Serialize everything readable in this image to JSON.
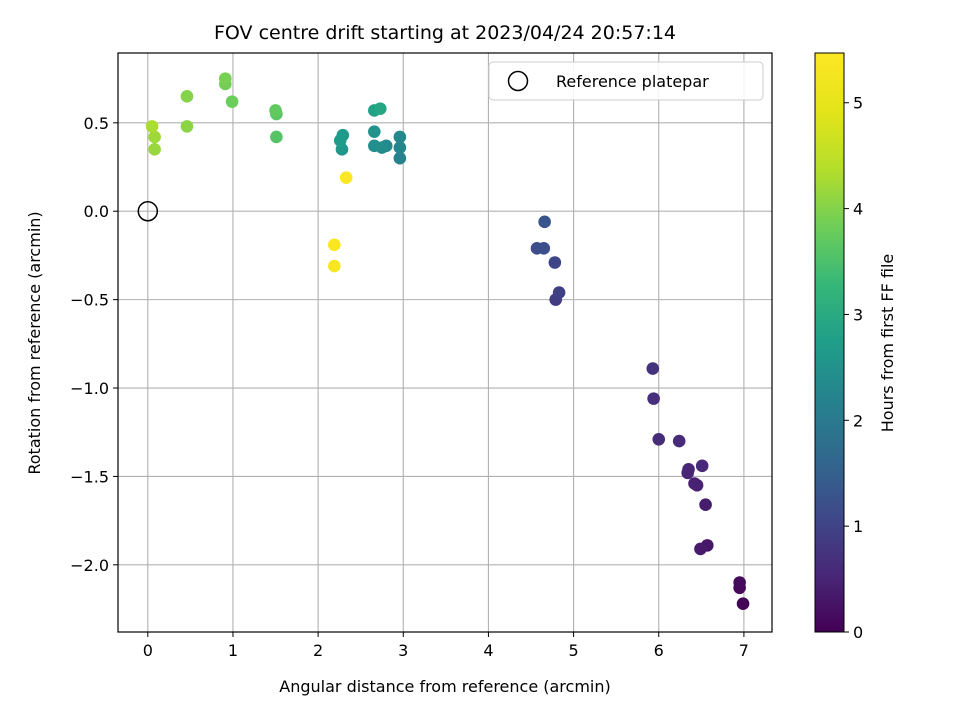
{
  "chart_data": {
    "type": "scatter",
    "title": "FOV centre drift starting at 2023/04/24 20:57:14",
    "xlabel": "Angular distance from reference (arcmin)",
    "ylabel": "Rotation from reference (arcmin)",
    "xlim": [
      -0.35,
      7.33
    ],
    "ylim": [
      -2.38,
      0.895
    ],
    "xticks": [
      0,
      1,
      2,
      3,
      4,
      5,
      6,
      7
    ],
    "xtick_labels": [
      "0",
      "1",
      "2",
      "3",
      "4",
      "5",
      "6",
      "7"
    ],
    "yticks": [
      -2.0,
      -1.5,
      -1.0,
      -0.5,
      0.0,
      0.5
    ],
    "ytick_labels": [
      "−2.0",
      "−1.5",
      "−1.0",
      "−0.5",
      "0.0",
      "0.5"
    ],
    "grid": true,
    "colormap": "viridis",
    "colorbar": {
      "label": "Hours from first FF file",
      "range": [
        0,
        5.47
      ],
      "ticks": [
        0,
        1,
        2,
        3,
        4,
        5
      ],
      "tick_labels": [
        "0",
        "1",
        "2",
        "3",
        "4",
        "5"
      ]
    },
    "legend": {
      "placement": "upper-right",
      "entries": [
        "Reference platepar"
      ]
    },
    "reference_point": {
      "x": 0.0,
      "y": 0.0
    },
    "points": [
      {
        "x": 6.99,
        "y": -2.22,
        "hours": 0.05
      },
      {
        "x": 6.95,
        "y": -2.13,
        "hours": 0.1
      },
      {
        "x": 6.95,
        "y": -2.1,
        "hours": 0.15
      },
      {
        "x": 6.57,
        "y": -1.89,
        "hours": 0.3
      },
      {
        "x": 6.49,
        "y": -1.91,
        "hours": 0.35
      },
      {
        "x": 6.55,
        "y": -1.66,
        "hours": 0.4
      },
      {
        "x": 6.42,
        "y": -1.54,
        "hours": 0.45
      },
      {
        "x": 6.45,
        "y": -1.55,
        "hours": 0.48
      },
      {
        "x": 6.34,
        "y": -1.48,
        "hours": 0.5
      },
      {
        "x": 6.35,
        "y": -1.46,
        "hours": 0.52
      },
      {
        "x": 6.51,
        "y": -1.44,
        "hours": 0.55
      },
      {
        "x": 6.24,
        "y": -1.3,
        "hours": 0.58
      },
      {
        "x": 6.0,
        "y": -1.29,
        "hours": 0.62
      },
      {
        "x": 5.94,
        "y": -1.06,
        "hours": 0.68
      },
      {
        "x": 5.93,
        "y": -0.89,
        "hours": 0.72
      },
      {
        "x": 4.79,
        "y": -0.5,
        "hours": 0.9
      },
      {
        "x": 4.83,
        "y": -0.46,
        "hours": 0.95
      },
      {
        "x": 4.78,
        "y": -0.29,
        "hours": 1.05
      },
      {
        "x": 4.57,
        "y": -0.21,
        "hours": 1.15
      },
      {
        "x": 4.65,
        "y": -0.21,
        "hours": 1.2
      },
      {
        "x": 4.66,
        "y": -0.06,
        "hours": 1.3
      },
      {
        "x": 2.96,
        "y": 0.3,
        "hours": 2.2
      },
      {
        "x": 2.96,
        "y": 0.36,
        "hours": 2.25
      },
      {
        "x": 2.96,
        "y": 0.42,
        "hours": 2.3
      },
      {
        "x": 2.8,
        "y": 0.37,
        "hours": 2.35
      },
      {
        "x": 2.75,
        "y": 0.36,
        "hours": 2.4
      },
      {
        "x": 2.66,
        "y": 0.37,
        "hours": 2.45
      },
      {
        "x": 2.66,
        "y": 0.45,
        "hours": 2.5
      },
      {
        "x": 2.28,
        "y": 0.35,
        "hours": 2.6
      },
      {
        "x": 2.26,
        "y": 0.4,
        "hours": 2.65
      },
      {
        "x": 2.29,
        "y": 0.43,
        "hours": 2.7
      },
      {
        "x": 2.66,
        "y": 0.57,
        "hours": 2.8
      },
      {
        "x": 2.73,
        "y": 0.58,
        "hours": 2.9
      },
      {
        "x": 1.51,
        "y": 0.42,
        "hours": 3.6
      },
      {
        "x": 1.51,
        "y": 0.55,
        "hours": 3.65
      },
      {
        "x": 1.5,
        "y": 0.57,
        "hours": 3.7
      },
      {
        "x": 0.99,
        "y": 0.62,
        "hours": 3.8
      },
      {
        "x": 0.91,
        "y": 0.72,
        "hours": 3.85
      },
      {
        "x": 0.91,
        "y": 0.75,
        "hours": 3.9
      },
      {
        "x": 0.46,
        "y": 0.65,
        "hours": 4.0
      },
      {
        "x": 0.46,
        "y": 0.48,
        "hours": 4.05
      },
      {
        "x": 0.08,
        "y": 0.35,
        "hours": 4.15
      },
      {
        "x": 0.08,
        "y": 0.42,
        "hours": 4.2
      },
      {
        "x": 0.05,
        "y": 0.48,
        "hours": 4.3
      },
      {
        "x": 2.19,
        "y": -0.31,
        "hours": 5.35
      },
      {
        "x": 2.19,
        "y": -0.19,
        "hours": 5.4
      },
      {
        "x": 2.33,
        "y": 0.19,
        "hours": 5.45
      }
    ]
  }
}
